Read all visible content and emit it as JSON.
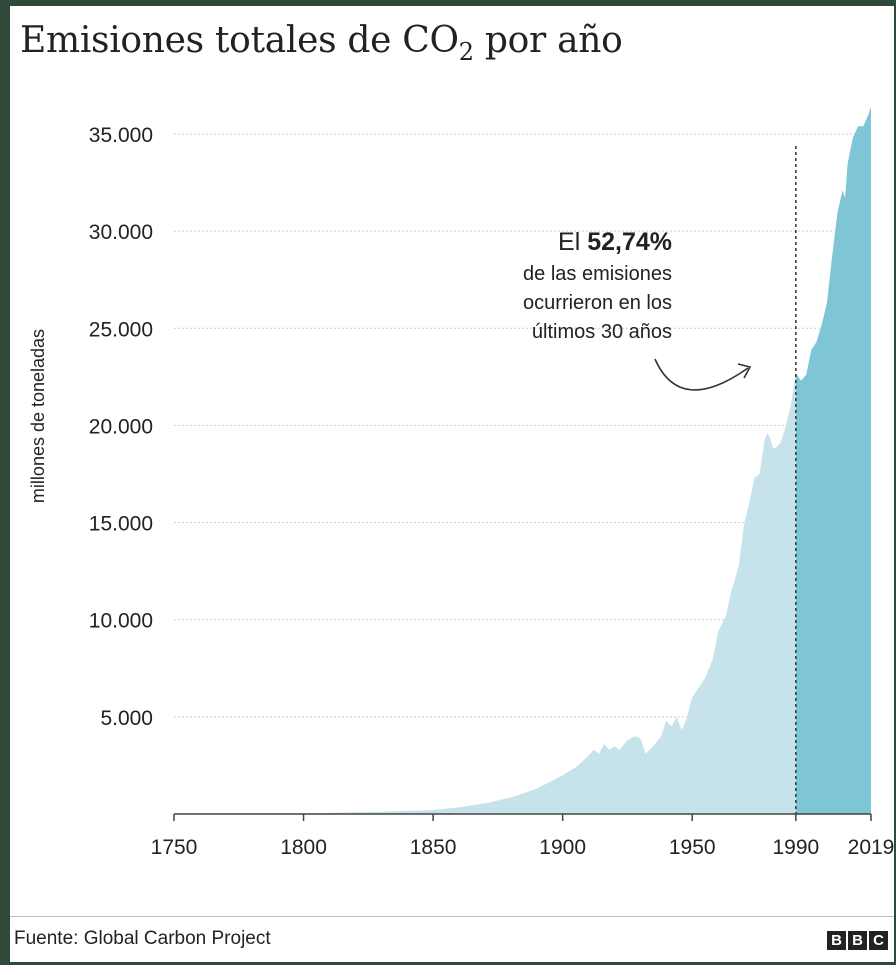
{
  "title": {
    "prefix": "Emisiones totales de CO",
    "subscript": "2",
    "suffix": " por año"
  },
  "annotation": {
    "line1_prefix": "El ",
    "line1_value": "52,74%",
    "line2": "de las emisiones",
    "line3": "ocurrieron en los",
    "line4": "últimos 30 años"
  },
  "source": "Fuente: Global Carbon Project",
  "logo": [
    "B",
    "B",
    "C"
  ],
  "colors": {
    "early_area": "#c6e3eb",
    "recent_area": "#7ec5d6",
    "text": "#222222",
    "grid": "#cfcfcf"
  },
  "chart_data": {
    "type": "area",
    "ylabel": "millones de toneladas",
    "xlim": [
      1750,
      2019
    ],
    "ylim": [
      0,
      35000
    ],
    "yticks": [
      5000,
      10000,
      15000,
      20000,
      25000,
      30000,
      35000
    ],
    "ytick_labels": [
      "5.000",
      "10.000",
      "15.000",
      "20.000",
      "25.000",
      "30.000",
      "35.000"
    ],
    "xticks": [
      1750,
      1800,
      1850,
      1900,
      1950,
      1990,
      2019
    ],
    "xtick_labels": [
      "1750",
      "1800",
      "1850",
      "1900",
      "1950",
      "1990",
      "2019"
    ],
    "split_year": 1990,
    "x": [
      1750,
      1775,
      1800,
      1825,
      1850,
      1860,
      1870,
      1880,
      1890,
      1900,
      1905,
      1910,
      1912,
      1914,
      1916,
      1918,
      1920,
      1922,
      1925,
      1928,
      1930,
      1932,
      1935,
      1938,
      1940,
      1942,
      1944,
      1946,
      1948,
      1950,
      1953,
      1955,
      1958,
      1960,
      1963,
      1965,
      1968,
      1970,
      1972,
      1974,
      1976,
      1978,
      1979,
      1980,
      1981,
      1982,
      1984,
      1986,
      1988,
      1990,
      1992,
      1994,
      1996,
      1998,
      2000,
      2002,
      2004,
      2006,
      2008,
      2009,
      2010,
      2012,
      2014,
      2016,
      2018,
      2019
    ],
    "series": [
      {
        "name": "Emisiones",
        "values": [
          10,
          20,
          30,
          100,
          200,
          350,
          550,
          850,
          1300,
          2000,
          2400,
          3000,
          3300,
          3100,
          3600,
          3300,
          3500,
          3300,
          3800,
          4000,
          3900,
          3100,
          3500,
          4000,
          4800,
          4500,
          5000,
          4300,
          5000,
          6000,
          6600,
          7000,
          8000,
          9400,
          10200,
          11400,
          12800,
          14900,
          16000,
          17300,
          17500,
          19300,
          19600,
          19400,
          18900,
          18800,
          19100,
          19900,
          21000,
          22700,
          22300,
          22600,
          23900,
          24300,
          25200,
          26300,
          28700,
          30900,
          32100,
          31700,
          33500,
          34800,
          35400,
          35400,
          36000,
          36400
        ]
      }
    ]
  }
}
